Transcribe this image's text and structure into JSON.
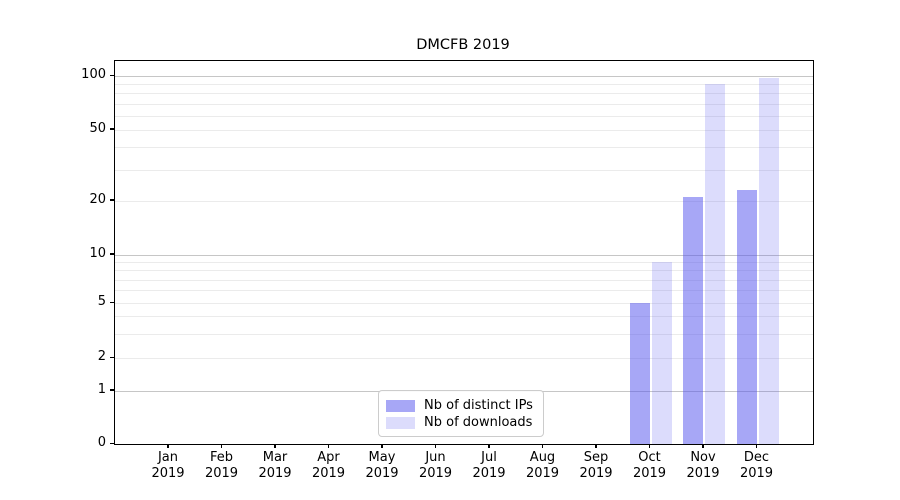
{
  "title": "DMCFB 2019",
  "chart_data": {
    "type": "bar",
    "categories": [
      "Jan",
      "Feb",
      "Mar",
      "Apr",
      "May",
      "Jun",
      "Jul",
      "Aug",
      "Sep",
      "Oct",
      "Nov",
      "Dec"
    ],
    "x_tick_year": "2019",
    "series": [
      {
        "name": "Nb of distinct IPs",
        "color_hex": "#a7a7f4",
        "fill": "rgba(80,80,238,0.50)",
        "values": [
          0,
          0,
          0,
          0,
          0,
          0,
          0,
          0,
          0,
          5,
          21,
          23
        ]
      },
      {
        "name": "Nb of downloads",
        "color_hex": "#dcdcf8",
        "fill": "rgba(80,80,238,0.20)",
        "values": [
          0,
          0,
          0,
          0,
          0,
          0,
          0,
          0,
          0,
          9,
          90,
          97
        ]
      }
    ],
    "y_ticks": [
      0,
      1,
      2,
      5,
      10,
      20,
      50,
      100
    ],
    "y_major_gridlines": [
      1,
      10,
      100
    ],
    "y_minor_gridlines": [
      2,
      3,
      4,
      5,
      6,
      7,
      8,
      9,
      20,
      30,
      40,
      50,
      60,
      70,
      80,
      90
    ],
    "y_scale": "log (linear below 1)",
    "ylim": [
      0,
      121
    ],
    "xlabel": "",
    "ylabel": "",
    "grid": "on",
    "legend_position": "lower center"
  },
  "colors": {
    "major_grid": "#c6c6c6",
    "minor_grid": "#ebebeb",
    "axis": "#000000",
    "background": "#ffffff"
  }
}
